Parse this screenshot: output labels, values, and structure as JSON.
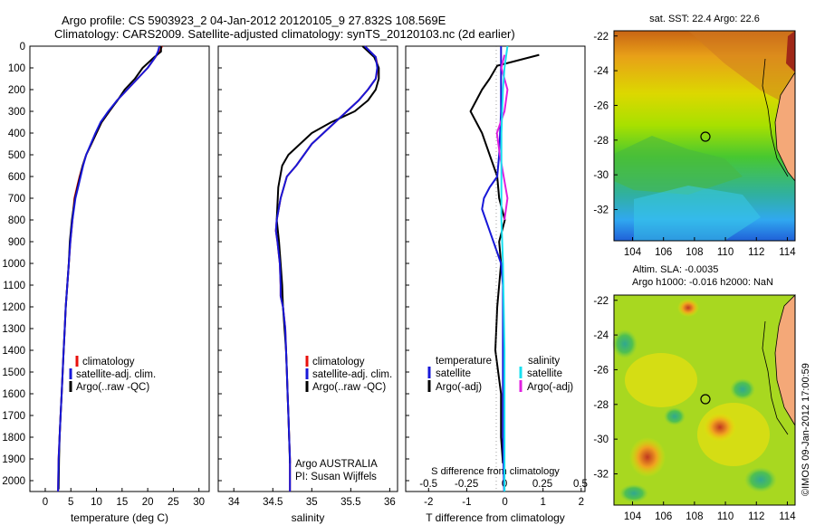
{
  "title": {
    "line1": "Argo profile: CS 5903923_2 04-Jan-2012 20120105_9 27.832S 108.569E",
    "line2": "Climatology: CARS2009. Satellite-adjusted climatology: synTS_20120103.nc (2d earlier)"
  },
  "colors": {
    "climatology": "#e8100c",
    "satellite": "#1818d8",
    "argo": "#000000",
    "sal_satellite": "#18e0f0",
    "sal_argo": "#e020e0"
  },
  "y_axis": {
    "ylim": [
      0,
      2050
    ],
    "ticks": [
      "0",
      "100",
      "200",
      "300",
      "400",
      "500",
      "600",
      "700",
      "800",
      "900",
      "1000",
      "1100",
      "1200",
      "1300",
      "1400",
      "1500",
      "1600",
      "1700",
      "1800",
      "1900",
      "2000"
    ]
  },
  "panels": {
    "temperature": {
      "xlabel": "temperature (deg C)",
      "xticks": [
        "0",
        "5",
        "10",
        "15",
        "20",
        "25",
        "30"
      ],
      "legend": [
        "climatology",
        "satellite-adj. clim.",
        "Argo(..raw -QC)"
      ]
    },
    "salinity": {
      "xlabel": "salinity",
      "xticks": [
        "34",
        "34.5",
        "35",
        "35.5",
        "36"
      ],
      "legend": [
        "climatology",
        "satellite-adj. clim.",
        "Argo(..raw -QC)"
      ],
      "note1": "Argo AUSTRALIA",
      "note2": "PI: Susan Wijffels"
    },
    "difference": {
      "xlabel": "T difference from climatology",
      "top_label": "S difference from climatology",
      "top_ticks": [
        "-0.5",
        "-0.25",
        "0",
        "0.25",
        "0.5"
      ],
      "xticks": [
        "-2",
        "-1",
        "0",
        "1",
        "2"
      ],
      "legend_t_title": "temperature",
      "legend_s_title": "salinity",
      "legend_t": [
        "satellite",
        "Argo(-adj)"
      ],
      "legend_s": [
        "satellite",
        "Argo(-adj)"
      ]
    }
  },
  "maps": {
    "sst_title": "sat. SST: 22.4  Argo: 22.6",
    "sla_title1": "Altim. SLA: -0.0035",
    "sla_title2": "Argo h1000: -0.016  h2000: NaN",
    "xticks": [
      "104",
      "106",
      "108",
      "110",
      "112",
      "114"
    ],
    "yticks": [
      "-22",
      "-24",
      "-26",
      "-28",
      "-30",
      "-32"
    ]
  },
  "credit": "©IMOS 09-Jan-2012 17:00:59",
  "chart_data": [
    {
      "type": "line",
      "panel": "temperature",
      "xlabel": "temperature (deg C)",
      "xlim": [
        -3,
        32
      ],
      "ylim": [
        0,
        2050
      ],
      "series": [
        {
          "name": "climatology",
          "x": [
            22.8,
            22.3,
            21.5,
            20,
            18,
            16,
            14,
            12.5,
            11,
            10,
            9,
            8,
            7.3,
            6.7,
            6.2,
            5.7,
            5.3,
            4.9,
            4.6,
            4.3,
            4.0,
            3.8,
            3.6,
            3.4,
            3.2,
            3.0,
            2.8,
            2.6,
            2.5
          ],
          "depth": [
            0,
            25,
            50,
            100,
            150,
            200,
            250,
            300,
            350,
            400,
            450,
            500,
            550,
            600,
            650,
            700,
            800,
            900,
            1000,
            1100,
            1200,
            1300,
            1400,
            1500,
            1600,
            1700,
            1800,
            1900,
            2050
          ]
        },
        {
          "name": "satellite-adj. clim.",
          "x": [
            22.3,
            22,
            21.5,
            20,
            18,
            16,
            14,
            12.3,
            10.8,
            9.8,
            8.9,
            8,
            7.4,
            6.9,
            6.4,
            5.9,
            5.3,
            4.9,
            4.6,
            4.3,
            4.0,
            3.8,
            3.6,
            3.4,
            3.2,
            3.0,
            2.8,
            2.6,
            2.5
          ],
          "depth": [
            0,
            25,
            50,
            100,
            150,
            200,
            250,
            300,
            350,
            400,
            450,
            500,
            550,
            600,
            650,
            700,
            800,
            900,
            1000,
            1100,
            1200,
            1300,
            1400,
            1500,
            1600,
            1700,
            1800,
            1900,
            2050
          ]
        },
        {
          "name": "Argo(..raw -QC)",
          "x": [
            22.6,
            22.6,
            21.3,
            19,
            17.5,
            15.5,
            14.1,
            12.5,
            11,
            10,
            9,
            8,
            7.3,
            6.8,
            6.3,
            5.8,
            5.2,
            4.8,
            4.6,
            4.3,
            4.0,
            3.8,
            3.6,
            3.4,
            3.2,
            3.0,
            2.8,
            2.7,
            2.6
          ],
          "depth": [
            0,
            25,
            50,
            100,
            150,
            200,
            250,
            300,
            350,
            400,
            450,
            500,
            550,
            600,
            650,
            700,
            800,
            900,
            1000,
            1100,
            1200,
            1300,
            1400,
            1500,
            1600,
            1700,
            1800,
            1900,
            2040
          ]
        }
      ]
    },
    {
      "type": "line",
      "panel": "salinity",
      "xlabel": "salinity",
      "xlim": [
        33.8,
        36.1
      ],
      "ylim": [
        0,
        2050
      ],
      "series": [
        {
          "name": "climatology",
          "x": [
            35.68,
            35.82,
            35.85,
            35.82,
            35.72,
            35.6,
            35.45,
            35.3,
            35.15,
            35.0,
            34.9,
            34.8,
            34.68,
            34.6,
            34.55,
            34.54,
            34.56,
            34.59,
            34.6,
            34.6,
            34.63,
            34.66,
            34.67,
            34.68,
            34.69,
            34.7,
            34.71,
            34.72,
            34.72
          ],
          "depth": [
            0,
            50,
            100,
            150,
            200,
            250,
            300,
            350,
            400,
            450,
            500,
            550,
            600,
            700,
            800,
            850,
            900,
            1000,
            1100,
            1150,
            1200,
            1300,
            1400,
            1500,
            1600,
            1700,
            1800,
            1900,
            2050
          ]
        },
        {
          "name": "satellite-adj. clim.",
          "x": [
            35.68,
            35.82,
            35.84,
            35.82,
            35.72,
            35.6,
            35.45,
            35.3,
            35.15,
            35.0,
            34.9,
            34.8,
            34.68,
            34.6,
            34.55,
            34.54,
            34.56,
            34.59,
            34.6,
            34.6,
            34.63,
            34.66,
            34.67,
            34.68,
            34.69,
            34.7,
            34.71,
            34.72,
            34.72
          ],
          "depth": [
            0,
            50,
            100,
            150,
            200,
            250,
            300,
            350,
            400,
            450,
            500,
            550,
            600,
            700,
            800,
            850,
            900,
            1000,
            1100,
            1150,
            1200,
            1300,
            1400,
            1500,
            1600,
            1700,
            1800,
            1900,
            2050
          ]
        },
        {
          "name": "Argo(..raw -QC)",
          "x": [
            35.65,
            35.8,
            35.86,
            35.86,
            35.82,
            35.72,
            35.55,
            35.25,
            35.0,
            34.85,
            34.7,
            34.62,
            34.57,
            34.55,
            34.58,
            34.6,
            34.62,
            34.63,
            34.65,
            34.67,
            34.68,
            34.69,
            34.7,
            34.71,
            34.72
          ],
          "depth": [
            0,
            50,
            100,
            150,
            200,
            250,
            300,
            350,
            400,
            450,
            500,
            550,
            650,
            800,
            900,
            1000,
            1100,
            1200,
            1300,
            1400,
            1500,
            1600,
            1700,
            1800,
            1920
          ]
        }
      ]
    },
    {
      "type": "line",
      "panel": "difference",
      "xlabel": "T difference from climatology",
      "xlim": [
        -2.6,
        2.1
      ],
      "ylim": [
        0,
        2050
      ],
      "series": [
        {
          "name": "T satellite",
          "x": [
            -0.1,
            -0.1,
            -0.1,
            -0.15,
            -0.2,
            -0.4,
            -0.55,
            -0.6,
            -0.5,
            -0.3,
            -0.1,
            -0.05,
            -0.05,
            -0.05,
            -0.05,
            -0.05,
            -0.02
          ],
          "depth": [
            0,
            100,
            300,
            500,
            600,
            650,
            700,
            750,
            800,
            900,
            1000,
            1100,
            1200,
            1400,
            1600,
            1800,
            2050
          ]
        },
        {
          "name": "T Argo(-adj)",
          "x": [
            0.9,
            -0.2,
            -0.4,
            -0.6,
            -0.9,
            -0.6,
            -0.5,
            -0.4,
            -0.2,
            -0.15,
            0.0,
            -0.15,
            -0.1,
            -0.2,
            -0.25,
            -0.1,
            -0.1,
            -0.05
          ],
          "depth": [
            40,
            90,
            150,
            200,
            300,
            400,
            450,
            500,
            600,
            700,
            800,
            900,
            1000,
            1200,
            1400,
            1600,
            1800,
            1920
          ]
        },
        {
          "name": "S satellite",
          "x": [
            0.02,
            0.0,
            -0.01,
            -0.02,
            -0.02,
            -0.02,
            -0.01,
            0.0,
            0.0,
            0.0
          ],
          "depth": [
            0,
            100,
            200,
            400,
            600,
            800,
            1000,
            1400,
            1800,
            2050
          ]
        },
        {
          "name": "S Argo(-adj)",
          "x": [
            0.0,
            -0.02,
            0.02,
            0.0,
            -0.05,
            -0.03,
            0.02,
            0.0
          ],
          "depth": [
            40,
            100,
            200,
            300,
            400,
            500,
            700,
            800
          ]
        }
      ]
    }
  ]
}
